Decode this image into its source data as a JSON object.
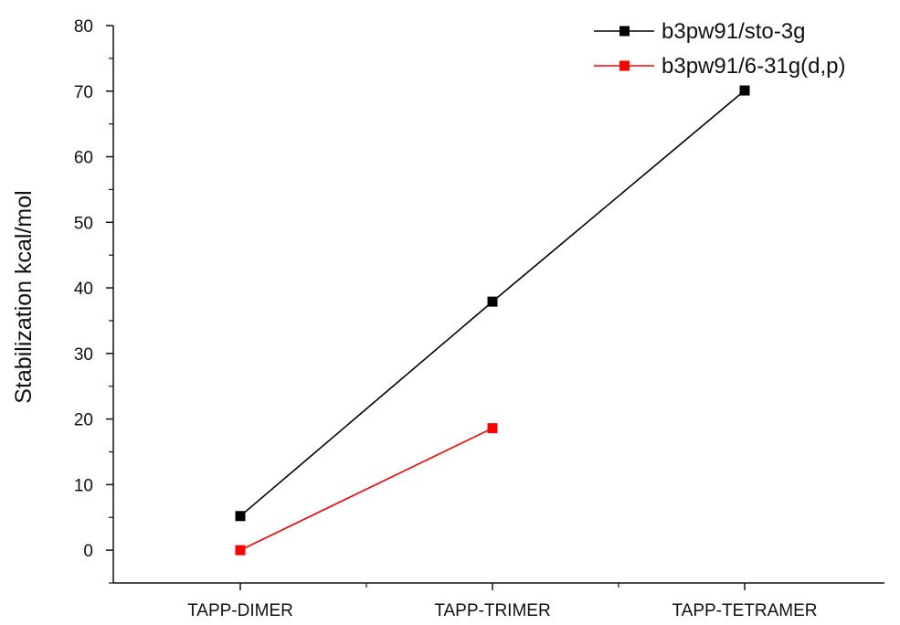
{
  "chart_data": {
    "type": "line",
    "categories": [
      "TAPP-DIMER",
      "TAPP-TRIMER",
      "TAPP-TETRAMER"
    ],
    "series": [
      {
        "name": "b3pw91/sto-3g",
        "color": "#000000",
        "values": [
          5.2,
          37.9,
          70.1
        ]
      },
      {
        "name": "b3pw91/6-31g(d,p)",
        "color": "#ff0000",
        "values": [
          0.0,
          18.6,
          null
        ]
      }
    ],
    "title": "",
    "xlabel": "",
    "ylabel": "Stabilization kcal/mol",
    "ylim": [
      -5,
      80
    ],
    "yticks": [
      0,
      10,
      20,
      30,
      40,
      50,
      60,
      70,
      80
    ],
    "grid": false,
    "legend_position": "top-right"
  }
}
